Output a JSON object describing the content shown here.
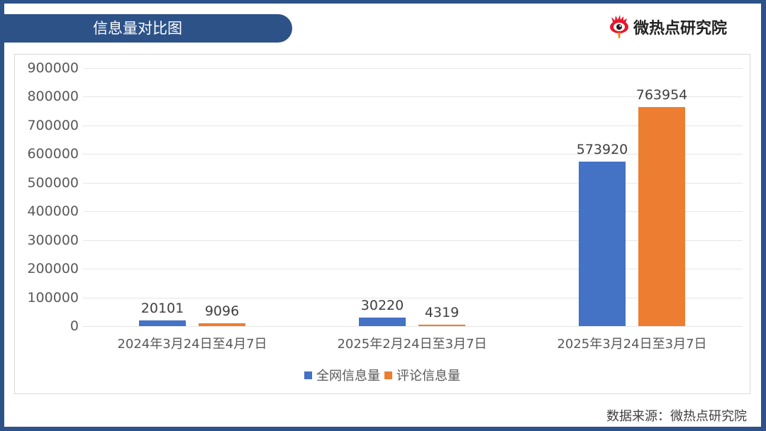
{
  "header": {
    "title": "信息量对比图",
    "logo_text": "微热点研究院"
  },
  "footer": {
    "source": "数据来源：微热点研究院"
  },
  "colors": {
    "frame": "#2d5288",
    "series_1": "#4472c4",
    "series_2": "#ed7d31"
  },
  "chart_data": {
    "type": "bar",
    "title": "信息量对比图",
    "xlabel": "",
    "ylabel": "",
    "categories": [
      "2024年3月24日至4月7日",
      "2025年2月24日至3月7日",
      "2025年3月24日至3月7日"
    ],
    "series": [
      {
        "name": "全网信息量",
        "color": "#4472c4",
        "values": [
          20101,
          30220,
          573920
        ]
      },
      {
        "name": "评论信息量",
        "color": "#ed7d31",
        "values": [
          9096,
          4319,
          763954
        ]
      }
    ],
    "ylim": [
      0,
      900000
    ],
    "yticks": [
      0,
      100000,
      200000,
      300000,
      400000,
      500000,
      600000,
      700000,
      800000,
      900000
    ],
    "ytick_labels": [
      "0",
      "100000",
      "200000",
      "300000",
      "400000",
      "500000",
      "600000",
      "700000",
      "800000",
      "900000"
    ],
    "data_labels": [
      [
        "20101",
        "30220",
        "573920"
      ],
      [
        "9096",
        "4319",
        "763954"
      ]
    ],
    "grid": true,
    "legend_position": "bottom"
  }
}
